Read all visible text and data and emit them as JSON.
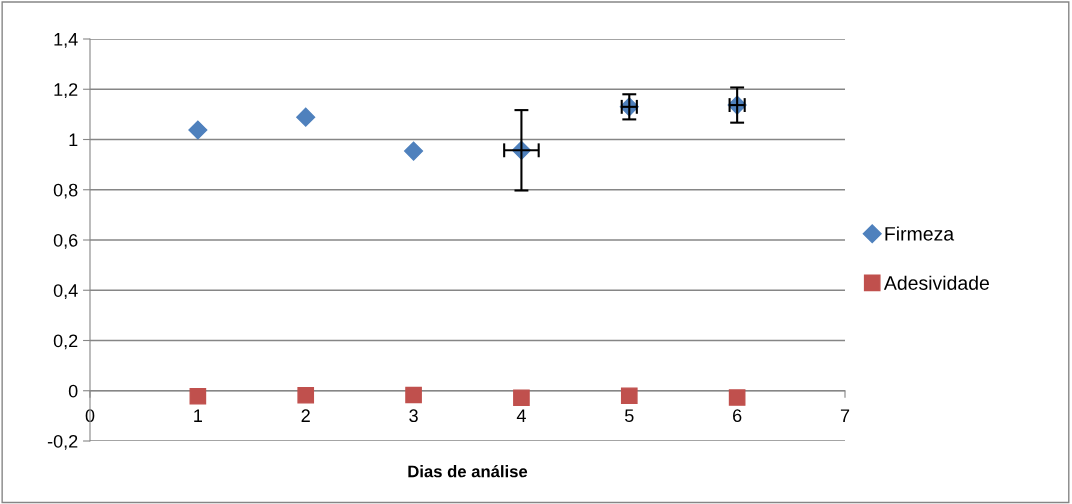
{
  "chart_data": {
    "type": "scatter",
    "xlabel": "Dias de análise",
    "x": [
      1,
      2,
      3,
      4,
      5,
      6
    ],
    "series": [
      {
        "name": "Firmeza",
        "color": "#4f81bd",
        "marker": "diamond",
        "values": [
          1.038,
          1.089,
          0.954,
          0.957,
          1.13,
          1.137
        ],
        "errors": [
          null,
          null,
          null,
          0.16,
          0.05,
          0.07
        ],
        "xerrors": [
          null,
          null,
          null,
          0.16,
          0.07,
          0.07
        ]
      },
      {
        "name": "Adesividade",
        "color": "#c0504d",
        "marker": "square",
        "values": [
          -0.022,
          -0.018,
          -0.017,
          -0.028,
          -0.02,
          -0.027
        ]
      }
    ],
    "xlim": [
      0,
      7
    ],
    "xticks": [
      0,
      1,
      2,
      3,
      4,
      5,
      6,
      7
    ],
    "ylim": [
      -0.2,
      1.4
    ],
    "yticks": [
      {
        "value": -0.2,
        "label": "-0,2"
      },
      {
        "value": 0,
        "label": "0"
      },
      {
        "value": 0.2,
        "label": "0,2"
      },
      {
        "value": 0.4,
        "label": "0,4"
      },
      {
        "value": 0.6,
        "label": "0,6"
      },
      {
        "value": 0.8,
        "label": "0,8"
      },
      {
        "value": 1,
        "label": "1"
      },
      {
        "value": 1.2,
        "label": "1,2"
      },
      {
        "value": 1.4,
        "label": "1,4"
      }
    ],
    "grid": "y",
    "legend": "right"
  }
}
